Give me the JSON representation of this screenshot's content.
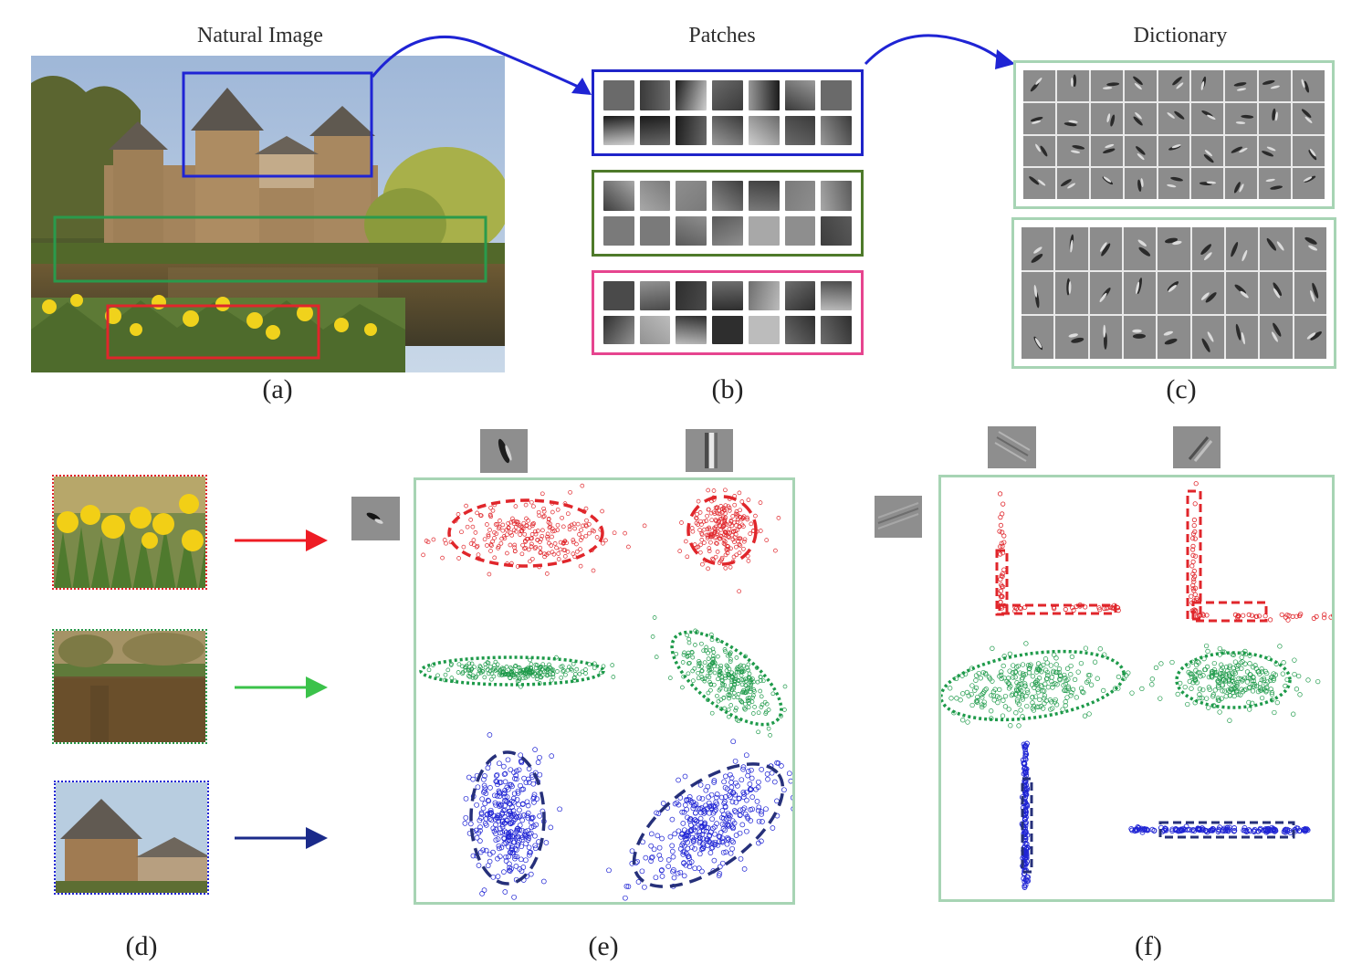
{
  "titles": {
    "natural_image": "Natural Image",
    "patches": "Patches",
    "dictionary": "Dictionary"
  },
  "sublabels": {
    "a": "(a)",
    "b": "(b)",
    "c": "(c)",
    "d": "(d)",
    "e": "(e)",
    "f": "(f)"
  },
  "colors": {
    "blue_box": "#1f24d4",
    "green_box": "#2a9a4c",
    "red_box": "#e0262b",
    "patch_blue": "#1f24c9",
    "patch_green": "#4e7a2a",
    "patch_pink": "#e6458f",
    "panel_border": "#a7d4b4",
    "red_cluster": "#e0262b",
    "green_cluster": "#1e9a4a",
    "blue_cluster": "#1f24d4",
    "navy_ellipse": "#26307a",
    "arrow_red": "#ee1c24",
    "arrow_green": "#3bc24a",
    "arrow_navy": "#1a2a8a"
  },
  "icons": {
    "castle_photo": "castle-landscape-image",
    "daffodil_crop": "daffodil-crop-image",
    "lake_crop": "lake-crop-image",
    "tower_crop": "tower-crop-image",
    "curved_arrow": "curved-arrow-icon",
    "straight_arrow": "arrow-right-icon",
    "dictionary_atom": "gabor-atom-icon"
  }
}
